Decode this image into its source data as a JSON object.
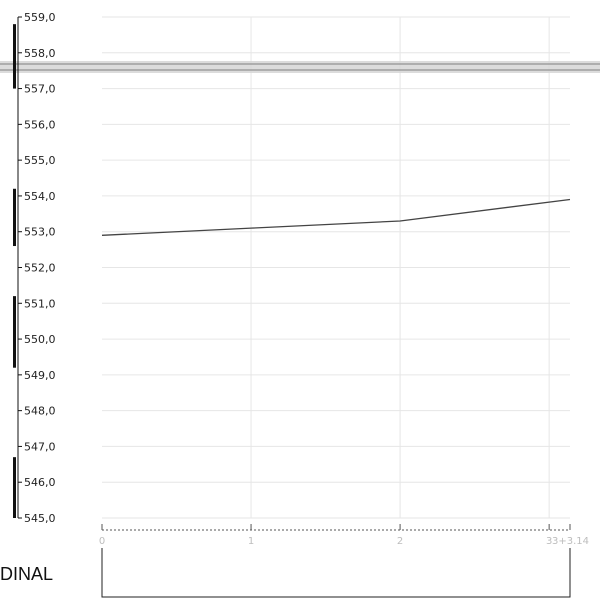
{
  "chart_data": {
    "type": "line",
    "title": "",
    "xlabel": "",
    "ylabel": "",
    "ylim": [
      545,
      559
    ],
    "xlim": [
      0,
      3.14
    ],
    "y_ticks": [
      "559,0",
      "558,0",
      "557,0",
      "556,0",
      "555,0",
      "554,0",
      "553,0",
      "552,0",
      "551,0",
      "550,0",
      "549,0",
      "548,0",
      "547,0",
      "546,0",
      "545,0"
    ],
    "x_ticks": [
      {
        "x": 0,
        "label": "0"
      },
      {
        "x": 1,
        "label": "1"
      },
      {
        "x": 2,
        "label": "2"
      },
      {
        "x": 3,
        "label": "3"
      },
      {
        "x": 3.14,
        "label": "3+3.14"
      }
    ],
    "series": [
      {
        "x": [
          0,
          1,
          2,
          3.14
        ],
        "values": [
          552.9,
          553.1,
          553.3,
          553.9
        ]
      }
    ],
    "grid": true,
    "colors": {
      "line": "#444444",
      "grid": "#e6e6e6",
      "axis": "#111111",
      "band": "#9e9e9e"
    }
  },
  "side_label": "DINAL"
}
